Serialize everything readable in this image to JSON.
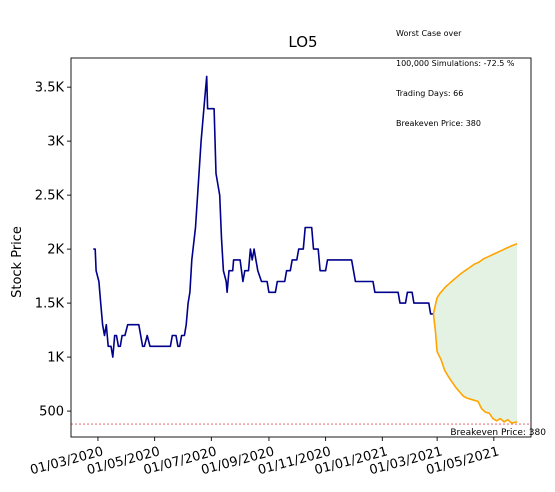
{
  "annotation": {
    "line1": "Worst Case over",
    "line2": "100,000 Simulations: -72.5 %",
    "line3": "Trading Days: 66",
    "line4": "Breakeven Price: 380"
  },
  "chart_data": {
    "type": "line",
    "title": "LO5",
    "xlabel": "",
    "ylabel": "Stock Price",
    "x_ticks": [
      "01/03/2020",
      "01/05/2020",
      "01/07/2020",
      "01/09/2020",
      "01/11/2020",
      "01/01/2021",
      "01/03/2021",
      "01/05/2021"
    ],
    "y_ticks": [
      "500",
      "1K",
      "1.5K",
      "2K",
      "2.5K",
      "3K",
      "3.5K"
    ],
    "ylim": [
      260,
      3770
    ],
    "xlim": [
      "2020-02-01",
      "2021-06-10"
    ],
    "breakeven": {
      "value": 380,
      "label": "Breakeven Price: 380",
      "color": "#e05050"
    },
    "grid": false,
    "colors": {
      "history": "#00008b",
      "projection": "#ffa500",
      "band": "#e4f2e4"
    },
    "series": [
      {
        "values": [
          [
            "2020-02-25",
            2000
          ],
          [
            "2020-02-27",
            2000
          ],
          [
            "2020-02-28",
            1800
          ],
          [
            "2020-03-02",
            1700
          ],
          [
            "2020-03-04",
            1500
          ],
          [
            "2020-03-06",
            1300
          ],
          [
            "2020-03-08",
            1200
          ],
          [
            "2020-03-10",
            1300
          ],
          [
            "2020-03-12",
            1100
          ],
          [
            "2020-03-15",
            1100
          ],
          [
            "2020-03-17",
            1000
          ],
          [
            "2020-03-19",
            1200
          ],
          [
            "2020-03-21",
            1200
          ],
          [
            "2020-03-23",
            1100
          ],
          [
            "2020-03-25",
            1100
          ],
          [
            "2020-03-27",
            1200
          ],
          [
            "2020-03-30",
            1200
          ],
          [
            "2020-04-02",
            1300
          ],
          [
            "2020-04-05",
            1300
          ],
          [
            "2020-04-10",
            1300
          ],
          [
            "2020-04-14",
            1300
          ],
          [
            "2020-04-16",
            1200
          ],
          [
            "2020-04-18",
            1100
          ],
          [
            "2020-04-20",
            1100
          ],
          [
            "2020-04-23",
            1200
          ],
          [
            "2020-04-26",
            1100
          ],
          [
            "2020-04-30",
            1100
          ],
          [
            "2020-05-10",
            1100
          ],
          [
            "2020-05-18",
            1100
          ],
          [
            "2020-05-20",
            1200
          ],
          [
            "2020-05-24",
            1200
          ],
          [
            "2020-05-26",
            1100
          ],
          [
            "2020-05-28",
            1100
          ],
          [
            "2020-05-30",
            1200
          ],
          [
            "2020-06-02",
            1200
          ],
          [
            "2020-06-04",
            1300
          ],
          [
            "2020-06-06",
            1500
          ],
          [
            "2020-06-08",
            1600
          ],
          [
            "2020-06-10",
            1900
          ],
          [
            "2020-06-14",
            2200
          ],
          [
            "2020-06-17",
            2600
          ],
          [
            "2020-06-20",
            3000
          ],
          [
            "2020-06-24",
            3400
          ],
          [
            "2020-06-26",
            3600
          ],
          [
            "2020-06-27",
            3300
          ],
          [
            "2020-07-04",
            3300
          ],
          [
            "2020-07-06",
            2700
          ],
          [
            "2020-07-10",
            2500
          ],
          [
            "2020-07-12",
            2100
          ],
          [
            "2020-07-14",
            1800
          ],
          [
            "2020-07-17",
            1700
          ],
          [
            "2020-07-18",
            1600
          ],
          [
            "2020-07-20",
            1800
          ],
          [
            "2020-07-24",
            1800
          ],
          [
            "2020-07-25",
            1900
          ],
          [
            "2020-08-01",
            1900
          ],
          [
            "2020-08-04",
            1700
          ],
          [
            "2020-08-06",
            1800
          ],
          [
            "2020-08-10",
            1800
          ],
          [
            "2020-08-12",
            2000
          ],
          [
            "2020-08-14",
            1900
          ],
          [
            "2020-08-16",
            2000
          ],
          [
            "2020-08-18",
            1900
          ],
          [
            "2020-08-20",
            1800
          ],
          [
            "2020-08-24",
            1700
          ],
          [
            "2020-08-30",
            1700
          ],
          [
            "2020-09-01",
            1600
          ],
          [
            "2020-09-08",
            1600
          ],
          [
            "2020-09-10",
            1700
          ],
          [
            "2020-09-18",
            1700
          ],
          [
            "2020-09-20",
            1800
          ],
          [
            "2020-09-24",
            1800
          ],
          [
            "2020-09-26",
            1900
          ],
          [
            "2020-10-01",
            1900
          ],
          [
            "2020-10-03",
            2000
          ],
          [
            "2020-10-08",
            2000
          ],
          [
            "2020-10-10",
            2200
          ],
          [
            "2020-10-17",
            2200
          ],
          [
            "2020-10-19",
            2000
          ],
          [
            "2020-10-24",
            2000
          ],
          [
            "2020-10-26",
            1800
          ],
          [
            "2020-11-01",
            1800
          ],
          [
            "2020-11-03",
            1900
          ],
          [
            "2020-11-29",
            1900
          ],
          [
            "2020-12-01",
            1800
          ],
          [
            "2020-12-03",
            1700
          ],
          [
            "2020-12-22",
            1700
          ],
          [
            "2020-12-24",
            1600
          ],
          [
            "2021-01-18",
            1600
          ],
          [
            "2021-01-20",
            1500
          ],
          [
            "2021-01-26",
            1500
          ],
          [
            "2021-01-28",
            1600
          ],
          [
            "2021-02-02",
            1600
          ],
          [
            "2021-02-04",
            1500
          ],
          [
            "2021-02-20",
            1500
          ],
          [
            "2021-02-22",
            1400
          ],
          [
            "2021-02-25",
            1400
          ]
        ]
      },
      {
        "values": [
          [
            "2021-02-25",
            1400
          ],
          [
            "2021-02-27",
            1480
          ],
          [
            "2021-03-01",
            1550
          ],
          [
            "2021-03-04",
            1590
          ],
          [
            "2021-03-07",
            1620
          ],
          [
            "2021-03-10",
            1650
          ],
          [
            "2021-03-14",
            1680
          ],
          [
            "2021-03-18",
            1710
          ],
          [
            "2021-03-22",
            1740
          ],
          [
            "2021-03-26",
            1770
          ],
          [
            "2021-03-31",
            1800
          ],
          [
            "2021-04-05",
            1830
          ],
          [
            "2021-04-10",
            1860
          ],
          [
            "2021-04-15",
            1880
          ],
          [
            "2021-04-20",
            1910
          ],
          [
            "2021-04-25",
            1930
          ],
          [
            "2021-04-30",
            1950
          ],
          [
            "2021-05-05",
            1970
          ],
          [
            "2021-05-10",
            1990
          ],
          [
            "2021-05-15",
            2010
          ],
          [
            "2021-05-20",
            2030
          ],
          [
            "2021-05-26",
            2050
          ]
        ]
      },
      {
        "values": [
          [
            "2021-02-25",
            1400
          ],
          [
            "2021-02-27",
            1250
          ],
          [
            "2021-03-01",
            1050
          ],
          [
            "2021-03-05",
            980
          ],
          [
            "2021-03-09",
            880
          ],
          [
            "2021-03-13",
            820
          ],
          [
            "2021-03-17",
            770
          ],
          [
            "2021-03-21",
            720
          ],
          [
            "2021-03-25",
            680
          ],
          [
            "2021-03-29",
            640
          ],
          [
            "2021-04-02",
            620
          ],
          [
            "2021-04-06",
            610
          ],
          [
            "2021-04-10",
            600
          ],
          [
            "2021-04-14",
            590
          ],
          [
            "2021-04-18",
            520
          ],
          [
            "2021-04-22",
            490
          ],
          [
            "2021-04-26",
            480
          ],
          [
            "2021-04-30",
            430
          ],
          [
            "2021-05-04",
            410
          ],
          [
            "2021-05-08",
            430
          ],
          [
            "2021-05-12",
            400
          ],
          [
            "2021-05-16",
            420
          ],
          [
            "2021-05-20",
            390
          ],
          [
            "2021-05-26",
            400
          ]
        ]
      }
    ]
  }
}
